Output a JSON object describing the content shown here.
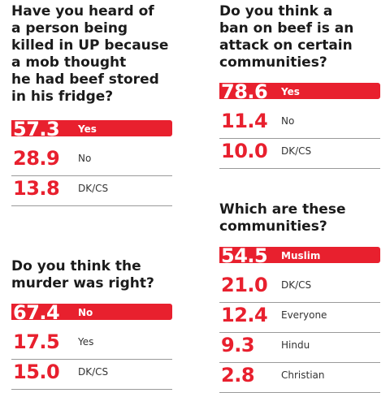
{
  "accent_color": "#e8202e",
  "chart_data": [
    {
      "type": "table",
      "title": "Have you heard of\na person being\nkilled in UP because\na mob thought\nhe had beef stored\nin his fridge?",
      "categories": [
        "Yes",
        "No",
        "DK/CS"
      ],
      "values": [
        "57.3",
        "28.9",
        "13.8"
      ],
      "highlight_index": 0
    },
    {
      "type": "table",
      "title": "Do you think the\nmurder was right?",
      "categories": [
        "No",
        "Yes",
        "DK/CS"
      ],
      "values": [
        "67.4",
        "17.5",
        "15.0"
      ],
      "highlight_index": 0
    },
    {
      "type": "table",
      "title": "Do you think a\nban on beef is an\nattack on certain\ncommunities?",
      "categories": [
        "Yes",
        "No",
        "DK/CS"
      ],
      "values": [
        "78.6",
        "11.4",
        "10.0"
      ],
      "highlight_index": 0
    },
    {
      "type": "table",
      "title": "Which are these\ncommunities?",
      "categories": [
        "Muslim",
        "DK/CS",
        "Everyone",
        "Hindu",
        "Christian"
      ],
      "values": [
        "54.5",
        "21.0",
        "12.4",
        "9.3",
        "2.8"
      ],
      "highlight_index": 0
    }
  ]
}
